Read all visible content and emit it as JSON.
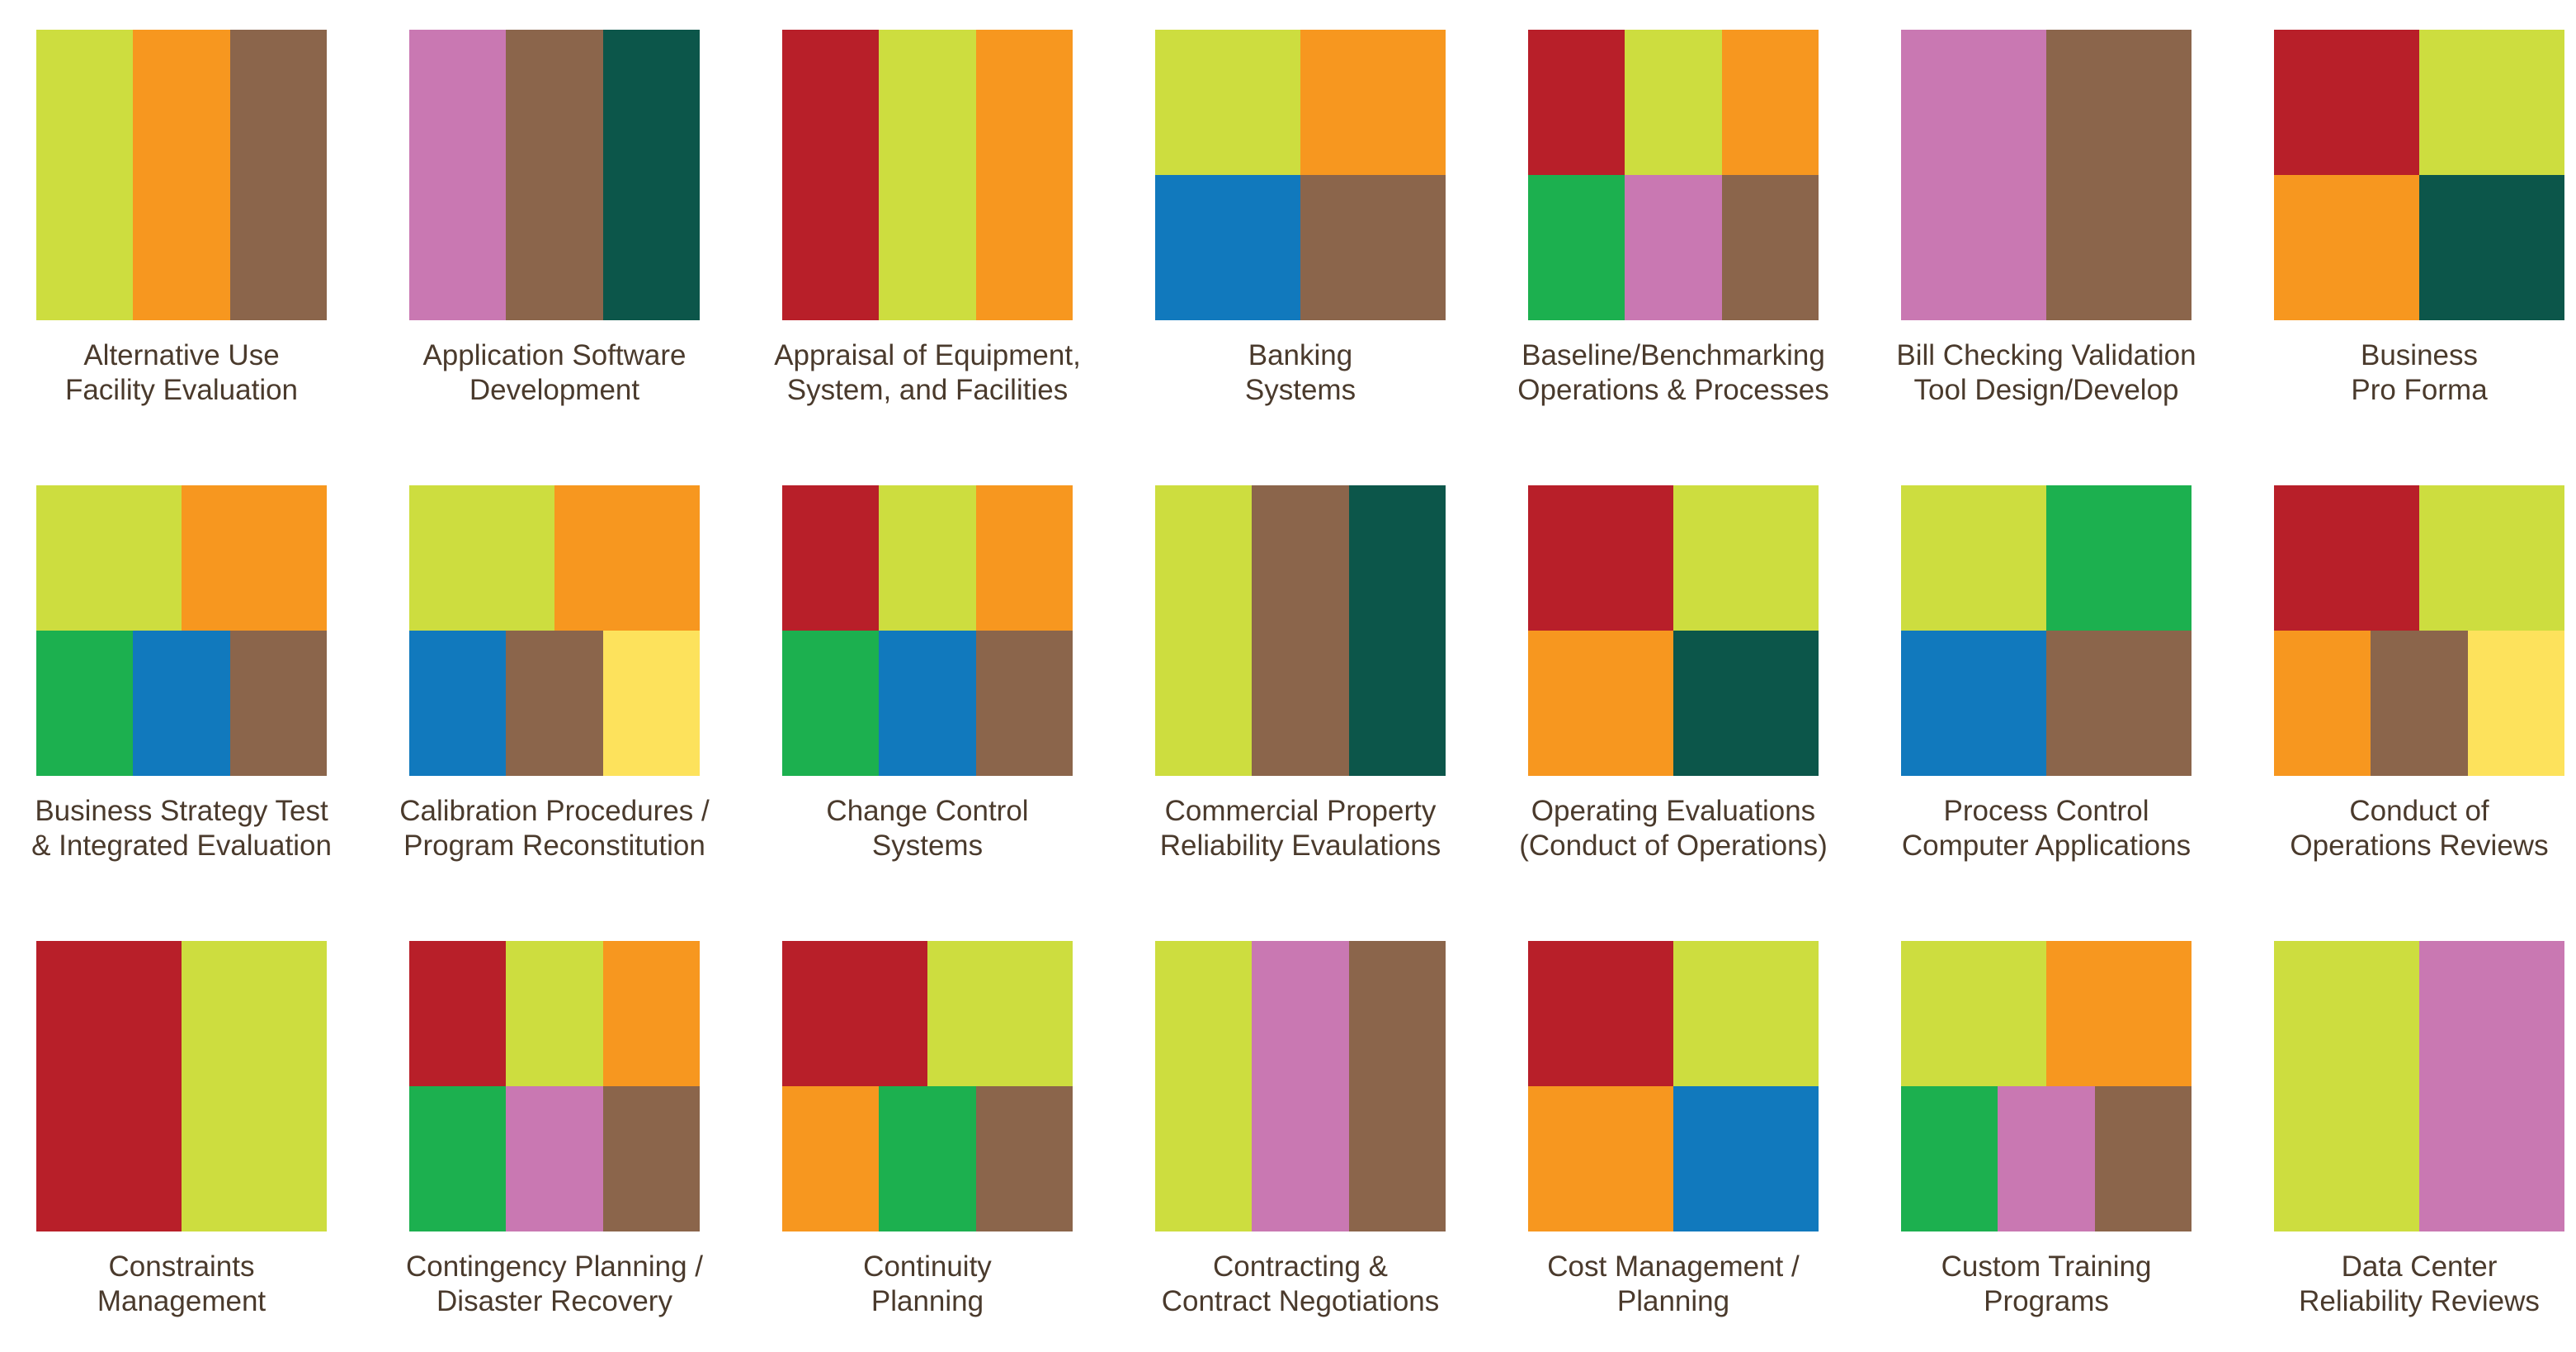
{
  "colors": {
    "lime": "#cddd3f",
    "orange": "#f7971f",
    "brown": "#8b654b",
    "pink": "#c978b2",
    "teal": "#0c564a",
    "red": "#b81f29",
    "blue": "#1179bd",
    "green": "#1cb04f",
    "yellow": "#fde25c",
    "caption_text": "#4a3a2c"
  },
  "tiles": [
    {
      "line1": "Alternative Use",
      "line2": "Facility Evaluation",
      "rows": [
        [
          "lime",
          "orange",
          "brown"
        ]
      ]
    },
    {
      "line1": "Application Software",
      "line2": "Development",
      "rows": [
        [
          "pink",
          "brown",
          "teal"
        ]
      ]
    },
    {
      "line1": "Appraisal of Equipment,",
      "line2": "System, and Facilities",
      "rows": [
        [
          "red",
          "lime",
          "orange"
        ]
      ]
    },
    {
      "line1": "Banking",
      "line2": "Systems",
      "rows": [
        [
          "lime",
          "orange"
        ],
        [
          "blue",
          "brown"
        ]
      ]
    },
    {
      "line1": "Baseline/Benchmarking",
      "line2": "Operations & Processes",
      "rows": [
        [
          "red",
          "lime",
          "orange"
        ],
        [
          "green",
          "pink",
          "brown"
        ]
      ]
    },
    {
      "line1": "Bill Checking Validation",
      "line2": "Tool Design/Develop",
      "rows": [
        [
          "pink",
          "brown"
        ]
      ]
    },
    {
      "line1": "Business",
      "line2": "Pro Forma",
      "rows": [
        [
          "red",
          "lime"
        ],
        [
          "orange",
          "teal"
        ]
      ]
    },
    {
      "line1": "Business Strategy Test",
      "line2": "& Integrated Evaluation",
      "rows": [
        [
          "lime",
          "orange"
        ],
        [
          "green",
          "blue",
          "brown"
        ]
      ]
    },
    {
      "line1": "Calibration Procedures /",
      "line2": "Program Reconstitution",
      "rows": [
        [
          "lime",
          "orange"
        ],
        [
          "blue",
          "brown",
          "yellow"
        ]
      ]
    },
    {
      "line1": "Change Control",
      "line2": "Systems",
      "rows": [
        [
          "red",
          "lime",
          "orange"
        ],
        [
          "green",
          "blue",
          "brown"
        ]
      ]
    },
    {
      "line1": "Commercial Property",
      "line2": "Reliability Evaulations",
      "rows": [
        [
          "lime",
          "brown",
          "teal"
        ]
      ]
    },
    {
      "line1": "Operating Evaluations",
      "line2": "(Conduct of Operations)",
      "rows": [
        [
          "red",
          "lime"
        ],
        [
          "orange",
          "teal"
        ]
      ]
    },
    {
      "line1": "Process Control",
      "line2": "Computer Applications",
      "rows": [
        [
          "lime",
          "green"
        ],
        [
          "blue",
          "brown"
        ]
      ]
    },
    {
      "line1": "Conduct of",
      "line2": "Operations Reviews",
      "rows": [
        [
          "red",
          "lime"
        ],
        [
          "orange",
          "brown",
          "yellow"
        ]
      ]
    },
    {
      "line1": "Constraints",
      "line2": "Management",
      "rows": [
        [
          "red",
          "lime"
        ]
      ]
    },
    {
      "line1": "Contingency Planning /",
      "line2": "Disaster Recovery",
      "rows": [
        [
          "red",
          "lime",
          "orange"
        ],
        [
          "green",
          "pink",
          "brown"
        ]
      ]
    },
    {
      "line1": "Continuity",
      "line2": "Planning",
      "rows": [
        [
          "red",
          "lime"
        ],
        [
          "orange",
          "green",
          "brown"
        ]
      ]
    },
    {
      "line1": "Contracting &",
      "line2": "Contract Negotiations",
      "rows": [
        [
          "lime",
          "pink",
          "brown"
        ]
      ]
    },
    {
      "line1": "Cost Management /",
      "line2": "Planning",
      "rows": [
        [
          "red",
          "lime"
        ],
        [
          "orange",
          "blue"
        ]
      ]
    },
    {
      "line1": "Custom Training",
      "line2": "Programs",
      "rows": [
        [
          "lime",
          "orange"
        ],
        [
          "green",
          "pink",
          "brown"
        ]
      ]
    },
    {
      "line1": "Data Center",
      "line2": "Reliability Reviews",
      "rows": [
        [
          "lime",
          "pink"
        ]
      ]
    }
  ]
}
